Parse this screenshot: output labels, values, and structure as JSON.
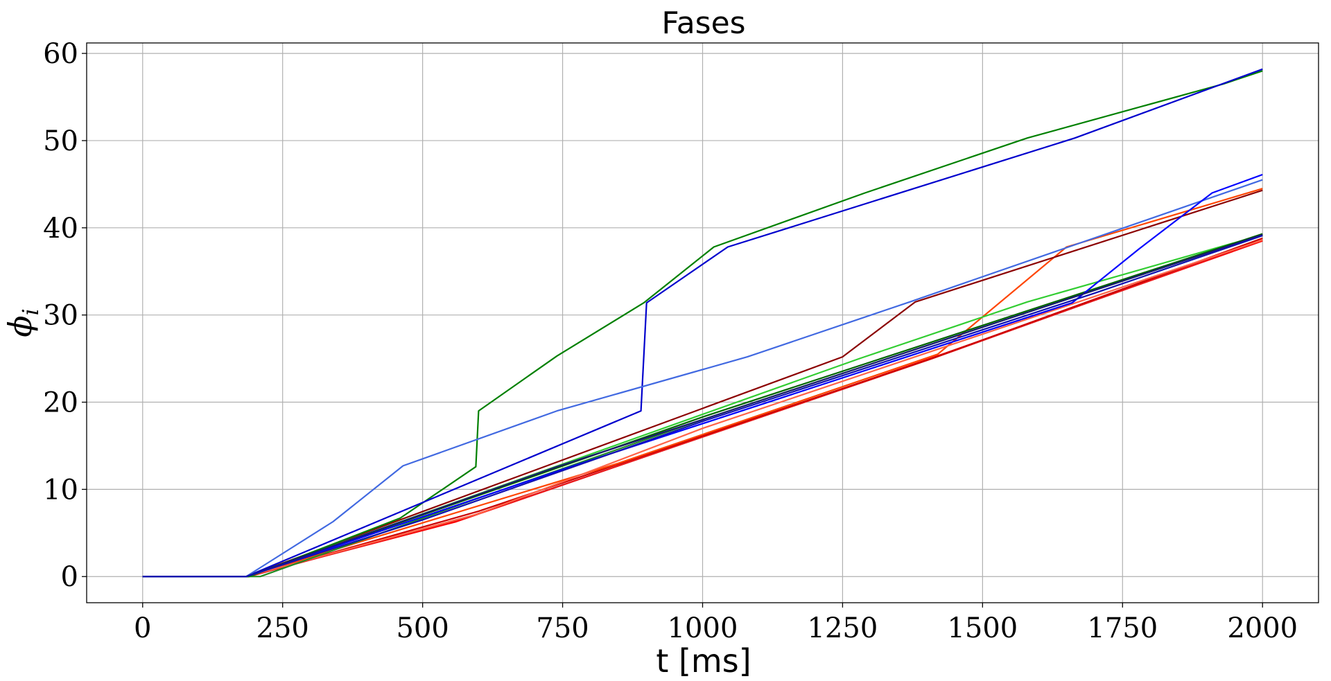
{
  "chart_data": {
    "type": "line",
    "title": "Fases",
    "xlabel": "t [ms]",
    "ylabel": "ϕ",
    "ylabel_subscript": "i",
    "xlim": [
      -100,
      2100
    ],
    "ylim": [
      -3,
      61.2
    ],
    "xticks": [
      0,
      250,
      500,
      750,
      1000,
      1250,
      1500,
      1750,
      2000
    ],
    "yticks": [
      0,
      10,
      20,
      30,
      40,
      50,
      60
    ],
    "grid": true,
    "series": [
      {
        "color": "#ff0000",
        "x": [
          0,
          185,
          560,
          1415,
          2000
        ],
        "y": [
          0,
          0,
          6.3,
          25.2,
          38.5
        ]
      },
      {
        "color": "#e41a1c",
        "x": [
          0,
          190,
          580,
          1410,
          2000
        ],
        "y": [
          0,
          0,
          6.8,
          25.0,
          38.6
        ]
      },
      {
        "color": "#cc0000",
        "x": [
          0,
          188,
          600,
          1400,
          2000
        ],
        "y": [
          0,
          0,
          7.5,
          24.8,
          38.8
        ]
      },
      {
        "color": "#ff4500",
        "x": [
          0,
          185,
          850,
          1420,
          1650,
          2000
        ],
        "y": [
          0,
          0,
          13.0,
          25.5,
          37.8,
          44.5
        ]
      },
      {
        "color": "#8b0000",
        "x": [
          0,
          185,
          1250,
          1380,
          2000
        ],
        "y": [
          0,
          0,
          25.2,
          31.5,
          44.3
        ]
      },
      {
        "color": "#ff6347",
        "x": [
          0,
          185,
          600,
          1000,
          2000
        ],
        "y": [
          0,
          0,
          7.2,
          17.0,
          38.6
        ]
      },
      {
        "color": "#32cd32",
        "x": [
          0,
          185,
          470,
          1280,
          1580,
          2000
        ],
        "y": [
          0,
          0,
          6.5,
          25.0,
          31.5,
          39.2
        ]
      },
      {
        "color": "#228b22",
        "x": [
          0,
          210,
          600,
          1000,
          2000
        ],
        "y": [
          0,
          0,
          9.0,
          18.0,
          39.2
        ]
      },
      {
        "color": "#006400",
        "x": [
          0,
          185,
          720,
          1000,
          2000
        ],
        "y": [
          0,
          0,
          12.0,
          18.3,
          39.3
        ]
      },
      {
        "color": "#008000",
        "x": [
          0,
          190,
          460,
          595,
          600,
          740,
          895,
          1020,
          1290,
          1580,
          1930,
          2000
        ],
        "y": [
          0,
          0,
          6.7,
          12.6,
          19.0,
          25.3,
          31.4,
          37.8,
          44.0,
          50.3,
          56.5,
          58.0
        ]
      },
      {
        "color": "#0000cd",
        "x": [
          0,
          185,
          890,
          900,
          1045,
          1665,
          2000
        ],
        "y": [
          0,
          0,
          19.0,
          31.4,
          37.8,
          50.3,
          58.2
        ]
      },
      {
        "color": "#4169e1",
        "x": [
          0,
          185,
          340,
          465,
          740,
          1080,
          1370,
          2000
        ],
        "y": [
          0,
          0,
          6.3,
          12.7,
          19.0,
          25.2,
          31.5,
          45.5
        ]
      },
      {
        "color": "#0000ff",
        "x": [
          0,
          185,
          760,
          1660,
          1780,
          1910,
          2000
        ],
        "y": [
          0,
          0,
          12.5,
          31.4,
          37.6,
          44.0,
          46.1
        ]
      },
      {
        "color": "#191970",
        "x": [
          0,
          185,
          740,
          1000,
          2000
        ],
        "y": [
          0,
          0,
          12.6,
          18.0,
          39.2
        ]
      },
      {
        "color": "#1010b0",
        "x": [
          0,
          185,
          500,
          1000,
          1700,
          2000
        ],
        "y": [
          0,
          0,
          6.5,
          17.8,
          32.5,
          39.1
        ]
      }
    ]
  }
}
